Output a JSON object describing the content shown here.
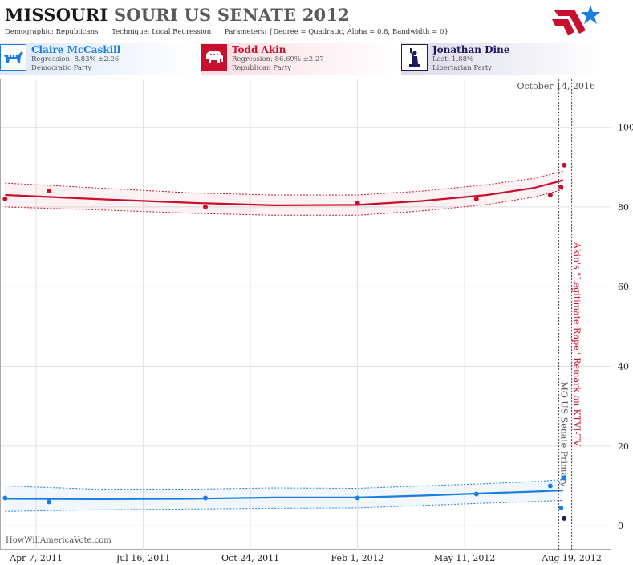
{
  "header": {
    "title_part1": "MISSOURI",
    "title_part2": "SOURI US SENATE 2012",
    "demographic_label": "Demographic:",
    "demographic_value": "Republicans",
    "technique_label": "Technique:",
    "technique_value": "Local Regression",
    "parameters_label": "Parameters:",
    "parameters_value": "{Degree = Quadratic, Alpha = 0.8, Bandwidth = 0}"
  },
  "candidates": [
    {
      "name": "Claire McCaskill",
      "stat": "Regression: 8.83% ±2.26",
      "party": "Democratic Party",
      "color": "#1a7fe0",
      "icon": "donkey-icon"
    },
    {
      "name": "Todd Akin",
      "stat": "Regression: 86.69% ±2.27",
      "party": "Republican Party",
      "color": "#c8102e",
      "icon": "elephant-icon"
    },
    {
      "name": "Jonathan Dine",
      "stat": "Last: 1.88%",
      "party": "Libertarian Party",
      "color": "#1a1a5e",
      "icon": "liberty-icon"
    }
  ],
  "watermark": "HowWillAmericaVote.com",
  "chart_data": {
    "type": "scatter",
    "x_tick_labels": [
      "Apr 7, 2011",
      "Jul 16, 2011",
      "Oct 24, 2011",
      "Feb 1, 2012",
      "May 11, 2012",
      "Aug 19, 2012"
    ],
    "y_ticks": [
      0,
      20,
      40,
      60,
      80,
      100
    ],
    "ylim": [
      -6,
      112
    ],
    "xlim": [
      "2011-03-05",
      "2012-09-25"
    ],
    "grid": true,
    "date_label": "October 14, 2016",
    "annotations": [
      {
        "x": "2012-08-07",
        "label": "MO US Senate Primary",
        "color": "#555555"
      },
      {
        "x": "2012-08-19",
        "label": "Akin's \"Legitimate Rape\" Remark on KTVI-TV",
        "color": "#c8102e"
      }
    ],
    "series": [
      {
        "name": "Todd Akin",
        "color": "#c8102e",
        "points": [
          {
            "x": "2011-03-09",
            "y": 82
          },
          {
            "x": "2011-04-19",
            "y": 84
          },
          {
            "x": "2011-09-12",
            "y": 80
          },
          {
            "x": "2012-02-01",
            "y": 81
          },
          {
            "x": "2012-05-22",
            "y": 82
          },
          {
            "x": "2012-07-30",
            "y": 83
          },
          {
            "x": "2012-08-09",
            "y": 85
          },
          {
            "x": "2012-08-12",
            "y": 90.5
          }
        ],
        "fit": [
          {
            "x": "2011-03-09",
            "y": 83
          },
          {
            "x": "2011-06-01",
            "y": 82
          },
          {
            "x": "2011-09-01",
            "y": 81
          },
          {
            "x": "2011-11-15",
            "y": 80.4
          },
          {
            "x": "2012-02-01",
            "y": 80.5
          },
          {
            "x": "2012-04-01",
            "y": 81.5
          },
          {
            "x": "2012-06-01",
            "y": 83
          },
          {
            "x": "2012-07-15",
            "y": 84.8
          },
          {
            "x": "2012-08-11",
            "y": 86.7
          }
        ],
        "band_upper": [
          {
            "x": "2011-03-09",
            "y": 86
          },
          {
            "x": "2011-06-01",
            "y": 84.8
          },
          {
            "x": "2011-09-01",
            "y": 83.5
          },
          {
            "x": "2011-11-15",
            "y": 83
          },
          {
            "x": "2012-02-01",
            "y": 83
          },
          {
            "x": "2012-04-01",
            "y": 84
          },
          {
            "x": "2012-06-01",
            "y": 85.6
          },
          {
            "x": "2012-07-15",
            "y": 87.2
          },
          {
            "x": "2012-08-11",
            "y": 89
          }
        ],
        "band_lower": [
          {
            "x": "2011-03-09",
            "y": 80
          },
          {
            "x": "2011-06-01",
            "y": 79.3
          },
          {
            "x": "2011-09-01",
            "y": 78.4
          },
          {
            "x": "2011-11-15",
            "y": 77.9
          },
          {
            "x": "2012-02-01",
            "y": 77.9
          },
          {
            "x": "2012-04-01",
            "y": 79
          },
          {
            "x": "2012-06-01",
            "y": 80.6
          },
          {
            "x": "2012-07-15",
            "y": 82.5
          },
          {
            "x": "2012-08-11",
            "y": 84.4
          }
        ]
      },
      {
        "name": "Claire McCaskill",
        "color": "#1a7fe0",
        "points": [
          {
            "x": "2011-03-09",
            "y": 7
          },
          {
            "x": "2011-04-19",
            "y": 6
          },
          {
            "x": "2011-09-12",
            "y": 7
          },
          {
            "x": "2012-02-01",
            "y": 7
          },
          {
            "x": "2012-05-22",
            "y": 8
          },
          {
            "x": "2012-07-30",
            "y": 10
          },
          {
            "x": "2012-08-12",
            "y": 12
          },
          {
            "x": "2012-08-09",
            "y": 4.5
          }
        ],
        "fit": [
          {
            "x": "2011-03-09",
            "y": 6.8
          },
          {
            "x": "2011-06-01",
            "y": 6.7
          },
          {
            "x": "2011-09-01",
            "y": 6.8
          },
          {
            "x": "2011-11-15",
            "y": 7.1
          },
          {
            "x": "2012-02-01",
            "y": 7.1
          },
          {
            "x": "2012-04-01",
            "y": 7.6
          },
          {
            "x": "2012-06-01",
            "y": 8.2
          },
          {
            "x": "2012-07-15",
            "y": 8.6
          },
          {
            "x": "2012-08-11",
            "y": 8.9
          }
        ],
        "band_upper": [
          {
            "x": "2011-03-09",
            "y": 10
          },
          {
            "x": "2011-06-01",
            "y": 9.2
          },
          {
            "x": "2011-09-01",
            "y": 9.2
          },
          {
            "x": "2011-11-15",
            "y": 9.5
          },
          {
            "x": "2012-02-01",
            "y": 9.4
          },
          {
            "x": "2012-04-01",
            "y": 10
          },
          {
            "x": "2012-06-01",
            "y": 10.6
          },
          {
            "x": "2012-07-15",
            "y": 11.1
          },
          {
            "x": "2012-08-11",
            "y": 11.6
          }
        ],
        "band_lower": [
          {
            "x": "2011-03-09",
            "y": 3.6
          },
          {
            "x": "2011-06-01",
            "y": 4
          },
          {
            "x": "2011-09-01",
            "y": 4.2
          },
          {
            "x": "2011-11-15",
            "y": 4.4
          },
          {
            "x": "2012-02-01",
            "y": 4.5
          },
          {
            "x": "2012-04-01",
            "y": 5.1
          },
          {
            "x": "2012-06-01",
            "y": 5.7
          },
          {
            "x": "2012-07-15",
            "y": 6.1
          },
          {
            "x": "2012-08-11",
            "y": 6.4
          }
        ]
      },
      {
        "name": "Jonathan Dine",
        "color": "#1a1a5e",
        "points": [
          {
            "x": "2012-08-12",
            "y": 1.88
          }
        ]
      }
    ]
  }
}
